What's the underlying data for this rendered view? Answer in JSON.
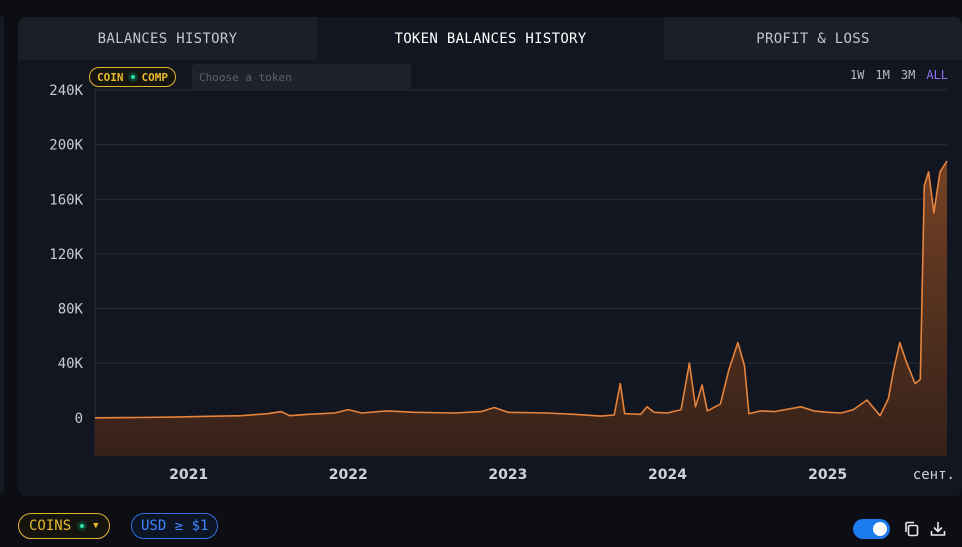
{
  "tabs": [
    {
      "label": "BALANCES HISTORY",
      "active": false
    },
    {
      "label": "TOKEN BALANCES HISTORY",
      "active": true
    },
    {
      "label": "PROFIT & LOSS",
      "active": false
    }
  ],
  "token_filter": {
    "chip_left": "COIN",
    "chip_right": "COMP",
    "placeholder": "Choose a token"
  },
  "ranges": [
    {
      "label": "1W",
      "active": false
    },
    {
      "label": "1M",
      "active": false
    },
    {
      "label": "3M",
      "active": false
    },
    {
      "label": "ALL",
      "active": true
    }
  ],
  "footer": {
    "coins_label": "COINS",
    "usd_label": "USD ≥ $1",
    "toggle_on": true,
    "copy_icon": "copy-icon",
    "download_icon": "download-icon"
  },
  "colors": {
    "accent": "#e7843c",
    "range_active": "#8f6cf2",
    "gold": "#e2b52c",
    "blue": "#2f6fe0"
  },
  "chart_data": {
    "type": "area",
    "title": "",
    "xlabel": "",
    "ylabel": "",
    "ylim": [
      -28000,
      240000
    ],
    "yticks": [
      0,
      40000,
      80000,
      120000,
      160000,
      200000,
      240000
    ],
    "ytick_labels": [
      "0",
      "40K",
      "80K",
      "120K",
      "160K",
      "200K",
      "240K"
    ],
    "xlim": [
      "2020-06-01",
      "2025-10-01"
    ],
    "xticks": [
      {
        "date": "2021-01-01",
        "label": "2021",
        "bold": true
      },
      {
        "date": "2022-01-01",
        "label": "2022",
        "bold": true
      },
      {
        "date": "2023-01-01",
        "label": "2023",
        "bold": true
      },
      {
        "date": "2024-01-01",
        "label": "2024",
        "bold": true
      },
      {
        "date": "2025-01-01",
        "label": "2025",
        "bold": true
      },
      {
        "date": "2025-09-01",
        "label": "сент.",
        "bold": false
      }
    ],
    "grid": true,
    "series": [
      {
        "color": "#e7843c",
        "points": [
          [
            "2020-06-01",
            0
          ],
          [
            "2020-09-01",
            200
          ],
          [
            "2020-12-01",
            500
          ],
          [
            "2021-02-01",
            1000
          ],
          [
            "2021-05-01",
            1500
          ],
          [
            "2021-07-01",
            3000
          ],
          [
            "2021-08-01",
            4500
          ],
          [
            "2021-08-20",
            1500
          ],
          [
            "2021-10-01",
            2500
          ],
          [
            "2021-12-01",
            3500
          ],
          [
            "2022-01-01",
            6000
          ],
          [
            "2022-02-01",
            3500
          ],
          [
            "2022-04-01",
            5000
          ],
          [
            "2022-06-01",
            4000
          ],
          [
            "2022-09-01",
            3500
          ],
          [
            "2022-11-01",
            4500
          ],
          [
            "2022-12-01",
            7500
          ],
          [
            "2023-01-01",
            4000
          ],
          [
            "2023-04-01",
            3500
          ],
          [
            "2023-06-01",
            2500
          ],
          [
            "2023-08-01",
            1200
          ],
          [
            "2023-09-01",
            2000
          ],
          [
            "2023-09-15",
            25000
          ],
          [
            "2023-09-25",
            3000
          ],
          [
            "2023-11-01",
            2500
          ],
          [
            "2023-11-15",
            8000
          ],
          [
            "2023-12-01",
            4000
          ],
          [
            "2024-01-01",
            3500
          ],
          [
            "2024-02-01",
            6000
          ],
          [
            "2024-02-20",
            40000
          ],
          [
            "2024-03-05",
            8000
          ],
          [
            "2024-03-20",
            24000
          ],
          [
            "2024-04-01",
            5000
          ],
          [
            "2024-05-01",
            10000
          ],
          [
            "2024-05-20",
            35000
          ],
          [
            "2024-06-10",
            55000
          ],
          [
            "2024-06-25",
            38000
          ],
          [
            "2024-07-05",
            3000
          ],
          [
            "2024-08-01",
            5000
          ],
          [
            "2024-09-01",
            4500
          ],
          [
            "2024-11-01",
            8000
          ],
          [
            "2024-12-01",
            5000
          ],
          [
            "2025-01-01",
            4000
          ],
          [
            "2025-02-01",
            3500
          ],
          [
            "2025-03-01",
            6000
          ],
          [
            "2025-04-01",
            13000
          ],
          [
            "2025-05-01",
            1500
          ],
          [
            "2025-05-20",
            14000
          ],
          [
            "2025-06-01",
            35000
          ],
          [
            "2025-06-15",
            55000
          ],
          [
            "2025-07-01",
            40000
          ],
          [
            "2025-07-20",
            25000
          ],
          [
            "2025-08-01",
            28000
          ],
          [
            "2025-08-10",
            170000
          ],
          [
            "2025-08-20",
            180000
          ],
          [
            "2025-09-01",
            150000
          ],
          [
            "2025-09-15",
            180000
          ],
          [
            "2025-10-01",
            188000
          ]
        ]
      }
    ]
  }
}
